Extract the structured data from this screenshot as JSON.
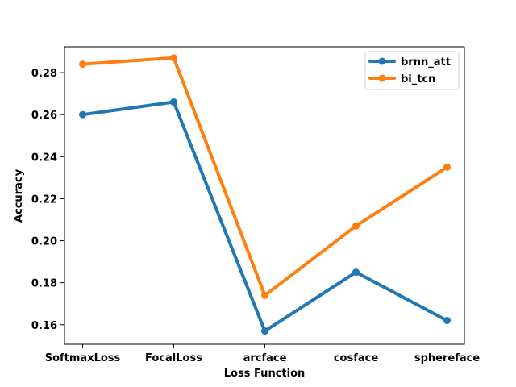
{
  "chart_data": {
    "type": "line",
    "xlabel": "Loss Function",
    "ylabel": "Accuracy",
    "categories": [
      "SoftmaxLoss",
      "FocalLoss",
      "arcface",
      "cosface",
      "sphereface"
    ],
    "series": [
      {
        "name": "brnn_att",
        "color": "#1f77b4",
        "values": [
          0.26,
          0.266,
          0.157,
          0.185,
          0.162
        ]
      },
      {
        "name": "bi_tcn",
        "color": "#ff7f0e",
        "values": [
          0.284,
          0.287,
          0.174,
          0.207,
          0.235
        ]
      }
    ],
    "ylim": [
      0.1507,
      0.2923
    ],
    "yticks": [
      0.16,
      0.18,
      0.2,
      0.22,
      0.24,
      0.26,
      0.28
    ],
    "ytick_labels": [
      "0.16",
      "0.18",
      "0.20",
      "0.22",
      "0.24",
      "0.26",
      "0.28"
    ],
    "legend_position": "top-right",
    "grid": false
  }
}
